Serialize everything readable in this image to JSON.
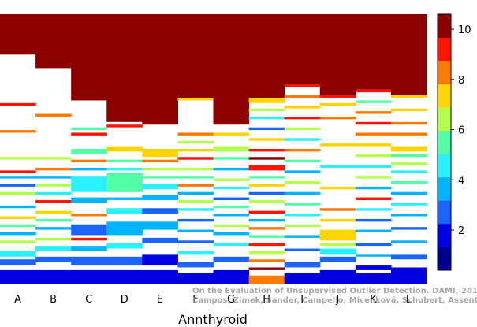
{
  "chart_data": {
    "type": "heatmap",
    "title": "",
    "xlabel": "Annthyroid",
    "ylabel": "",
    "categories": [
      "A",
      "B",
      "C",
      "D",
      "E",
      "F",
      "G",
      "H",
      "I",
      "J",
      "K",
      "L"
    ],
    "colorbar": {
      "range": [
        0.4,
        10.6
      ],
      "levels": 11,
      "ticks": [
        2,
        4,
        6,
        8,
        10
      ],
      "colors": [
        "#000090",
        "#0000e0",
        "#1c64ff",
        "#00b4ff",
        "#2af0ff",
        "#52ffa8",
        "#b4ff4c",
        "#ffd400",
        "#ff7a00",
        "#ff1400",
        "#8c0000"
      ]
    },
    "columns": [
      {
        "category": "A",
        "bands": [
          [
            0.0,
            0.15,
            10
          ],
          [
            0.33,
            0.34,
            9
          ],
          [
            0.43,
            0.44,
            8
          ],
          [
            0.53,
            0.54,
            6
          ],
          [
            0.58,
            0.59,
            9
          ],
          [
            0.6,
            0.61,
            3
          ],
          [
            0.63,
            0.64,
            2
          ],
          [
            0.66,
            0.67,
            6
          ],
          [
            0.71,
            0.72,
            3
          ],
          [
            0.75,
            0.76,
            7
          ],
          [
            0.78,
            0.79,
            5
          ],
          [
            0.81,
            0.82,
            3
          ],
          [
            0.84,
            0.85,
            6
          ],
          [
            0.88,
            0.9,
            4
          ],
          [
            0.91,
            0.93,
            2
          ],
          [
            0.95,
            1.0,
            1
          ]
        ]
      },
      {
        "category": "B",
        "bands": [
          [
            0.0,
            0.2,
            10
          ],
          [
            0.37,
            0.38,
            8
          ],
          [
            0.53,
            0.54,
            6
          ],
          [
            0.57,
            0.58,
            8
          ],
          [
            0.6,
            0.61,
            3
          ],
          [
            0.63,
            0.64,
            6
          ],
          [
            0.66,
            0.67,
            4
          ],
          [
            0.69,
            0.7,
            9
          ],
          [
            0.73,
            0.74,
            7
          ],
          [
            0.76,
            0.77,
            5
          ],
          [
            0.79,
            0.8,
            3
          ],
          [
            0.83,
            0.84,
            6
          ],
          [
            0.86,
            0.88,
            4
          ],
          [
            0.9,
            0.92,
            2
          ],
          [
            0.95,
            1.0,
            1
          ]
        ]
      },
      {
        "category": "C",
        "bands": [
          [
            0.0,
            0.32,
            10
          ],
          [
            0.42,
            0.43,
            5
          ],
          [
            0.44,
            0.45,
            9
          ],
          [
            0.5,
            0.52,
            5
          ],
          [
            0.54,
            0.55,
            8
          ],
          [
            0.57,
            0.58,
            3
          ],
          [
            0.6,
            0.66,
            4
          ],
          [
            0.68,
            0.7,
            3
          ],
          [
            0.74,
            0.75,
            8
          ],
          [
            0.78,
            0.82,
            2
          ],
          [
            0.83,
            0.84,
            9
          ],
          [
            0.86,
            0.88,
            3
          ],
          [
            0.9,
            0.93,
            2
          ],
          [
            0.95,
            1.0,
            1
          ]
        ]
      },
      {
        "category": "D",
        "bands": [
          [
            0.0,
            0.4,
            10
          ],
          [
            0.41,
            0.42,
            9
          ],
          [
            0.49,
            0.51,
            7
          ],
          [
            0.54,
            0.55,
            5
          ],
          [
            0.57,
            0.58,
            4
          ],
          [
            0.59,
            0.66,
            5
          ],
          [
            0.68,
            0.69,
            3
          ],
          [
            0.72,
            0.74,
            4
          ],
          [
            0.77,
            0.82,
            3
          ],
          [
            0.85,
            0.87,
            4
          ],
          [
            0.9,
            0.93,
            2
          ],
          [
            0.95,
            1.0,
            1
          ]
        ]
      },
      {
        "category": "E",
        "bands": [
          [
            0.0,
            0.41,
            10
          ],
          [
            0.5,
            0.53,
            7
          ],
          [
            0.54,
            0.55,
            8
          ],
          [
            0.57,
            0.58,
            6
          ],
          [
            0.6,
            0.61,
            5
          ],
          [
            0.63,
            0.65,
            4
          ],
          [
            0.67,
            0.69,
            3
          ],
          [
            0.72,
            0.74,
            2
          ],
          [
            0.77,
            0.8,
            3
          ],
          [
            0.83,
            0.85,
            2
          ],
          [
            0.89,
            0.93,
            1
          ],
          [
            0.95,
            1.0,
            1
          ]
        ]
      },
      {
        "category": "F",
        "bands": [
          [
            0.0,
            0.31,
            10
          ],
          [
            0.31,
            0.32,
            7
          ],
          [
            0.44,
            0.45,
            8
          ],
          [
            0.47,
            0.48,
            6
          ],
          [
            0.5,
            0.51,
            7
          ],
          [
            0.53,
            0.54,
            9
          ],
          [
            0.57,
            0.58,
            6
          ],
          [
            0.6,
            0.61,
            5
          ],
          [
            0.63,
            0.64,
            8
          ],
          [
            0.66,
            0.67,
            3
          ],
          [
            0.69,
            0.7,
            6
          ],
          [
            0.72,
            0.73,
            4
          ],
          [
            0.76,
            0.77,
            2
          ],
          [
            0.8,
            0.81,
            3
          ],
          [
            0.84,
            0.85,
            2
          ],
          [
            0.88,
            0.89,
            4
          ],
          [
            0.92,
            0.94,
            2
          ],
          [
            0.96,
            1.0,
            1
          ]
        ]
      },
      {
        "category": "G",
        "bands": [
          [
            0.0,
            0.41,
            10
          ],
          [
            0.44,
            0.45,
            7
          ],
          [
            0.49,
            0.51,
            6
          ],
          [
            0.53,
            0.54,
            5
          ],
          [
            0.57,
            0.58,
            3
          ],
          [
            0.61,
            0.62,
            6
          ],
          [
            0.64,
            0.65,
            4
          ],
          [
            0.68,
            0.69,
            2
          ],
          [
            0.71,
            0.72,
            5
          ],
          [
            0.74,
            0.75,
            3
          ],
          [
            0.78,
            0.79,
            6
          ],
          [
            0.81,
            0.82,
            3
          ],
          [
            0.85,
            0.86,
            4
          ],
          [
            0.9,
            0.92,
            2
          ],
          [
            0.95,
            1.0,
            1
          ]
        ]
      },
      {
        "category": "H",
        "bands": [
          [
            0.0,
            0.31,
            10
          ],
          [
            0.31,
            0.33,
            7
          ],
          [
            0.35,
            0.36,
            6
          ],
          [
            0.38,
            0.39,
            4
          ],
          [
            0.42,
            0.43,
            2
          ],
          [
            0.46,
            0.47,
            7
          ],
          [
            0.5,
            0.51,
            9
          ],
          [
            0.53,
            0.54,
            10
          ],
          [
            0.56,
            0.58,
            9
          ],
          [
            0.6,
            0.61,
            5
          ],
          [
            0.63,
            0.64,
            7
          ],
          [
            0.66,
            0.67,
            2
          ],
          [
            0.69,
            0.7,
            6
          ],
          [
            0.73,
            0.74,
            9
          ],
          [
            0.76,
            0.77,
            3
          ],
          [
            0.79,
            0.8,
            8
          ],
          [
            0.82,
            0.83,
            5
          ],
          [
            0.85,
            0.86,
            9
          ],
          [
            0.88,
            0.89,
            6
          ],
          [
            0.91,
            0.92,
            8
          ],
          [
            0.94,
            0.95,
            10
          ],
          [
            0.97,
            1.0,
            8
          ]
        ]
      },
      {
        "category": "I",
        "bands": [
          [
            0.0,
            0.26,
            10
          ],
          [
            0.26,
            0.27,
            9
          ],
          [
            0.3,
            0.31,
            8
          ],
          [
            0.34,
            0.35,
            7
          ],
          [
            0.38,
            0.39,
            9
          ],
          [
            0.42,
            0.43,
            6
          ],
          [
            0.46,
            0.47,
            4
          ],
          [
            0.5,
            0.51,
            8
          ],
          [
            0.54,
            0.55,
            5
          ],
          [
            0.58,
            0.59,
            3
          ],
          [
            0.62,
            0.63,
            6
          ],
          [
            0.66,
            0.67,
            3
          ],
          [
            0.7,
            0.71,
            5
          ],
          [
            0.74,
            0.75,
            4
          ],
          [
            0.78,
            0.79,
            6
          ],
          [
            0.82,
            0.83,
            3
          ],
          [
            0.87,
            0.88,
            2
          ],
          [
            0.92,
            0.94,
            2
          ],
          [
            0.96,
            1.0,
            1
          ]
        ]
      },
      {
        "category": "J",
        "bands": [
          [
            0.0,
            0.3,
            10
          ],
          [
            0.3,
            0.31,
            9
          ],
          [
            0.33,
            0.34,
            7
          ],
          [
            0.38,
            0.39,
            8
          ],
          [
            0.48,
            0.49,
            7
          ],
          [
            0.56,
            0.57,
            4
          ],
          [
            0.64,
            0.65,
            7
          ],
          [
            0.72,
            0.73,
            8
          ],
          [
            0.76,
            0.77,
            7
          ],
          [
            0.8,
            0.84,
            7
          ],
          [
            0.85,
            0.86,
            6
          ],
          [
            0.87,
            0.89,
            4
          ],
          [
            0.9,
            0.92,
            2
          ],
          [
            0.95,
            1.0,
            1
          ]
        ]
      },
      {
        "category": "K",
        "bands": [
          [
            0.0,
            0.28,
            10
          ],
          [
            0.28,
            0.29,
            9
          ],
          [
            0.32,
            0.33,
            5
          ],
          [
            0.36,
            0.37,
            8
          ],
          [
            0.4,
            0.41,
            9
          ],
          [
            0.44,
            0.45,
            8
          ],
          [
            0.48,
            0.49,
            7
          ],
          [
            0.52,
            0.53,
            6
          ],
          [
            0.56,
            0.57,
            4
          ],
          [
            0.6,
            0.61,
            6
          ],
          [
            0.64,
            0.65,
            3
          ],
          [
            0.68,
            0.69,
            9
          ],
          [
            0.72,
            0.73,
            4
          ],
          [
            0.76,
            0.77,
            2
          ],
          [
            0.8,
            0.81,
            3
          ],
          [
            0.85,
            0.86,
            2
          ],
          [
            0.89,
            0.9,
            3
          ],
          [
            0.93,
            0.95,
            1
          ],
          [
            0.96,
            1.0,
            1
          ]
        ]
      },
      {
        "category": "L",
        "bands": [
          [
            0.0,
            0.3,
            10
          ],
          [
            0.3,
            0.31,
            7
          ],
          [
            0.35,
            0.36,
            7
          ],
          [
            0.4,
            0.41,
            8
          ],
          [
            0.44,
            0.45,
            8
          ],
          [
            0.49,
            0.51,
            7
          ],
          [
            0.52,
            0.53,
            5
          ],
          [
            0.55,
            0.56,
            6
          ],
          [
            0.58,
            0.59,
            4
          ],
          [
            0.62,
            0.63,
            5
          ],
          [
            0.66,
            0.67,
            3
          ],
          [
            0.7,
            0.71,
            4
          ],
          [
            0.74,
            0.75,
            3
          ],
          [
            0.79,
            0.8,
            2
          ],
          [
            0.84,
            0.85,
            3
          ],
          [
            0.89,
            0.91,
            2
          ],
          [
            0.94,
            1.0,
            1
          ]
        ]
      }
    ]
  },
  "watermark": {
    "line1": "On the Evaluation of Unsupervised Outlier Detection. DAMI, 2015.",
    "line2": "Campos, Zimek, Sander, Campello, Micenková, Schubert, Assent, Houle"
  }
}
